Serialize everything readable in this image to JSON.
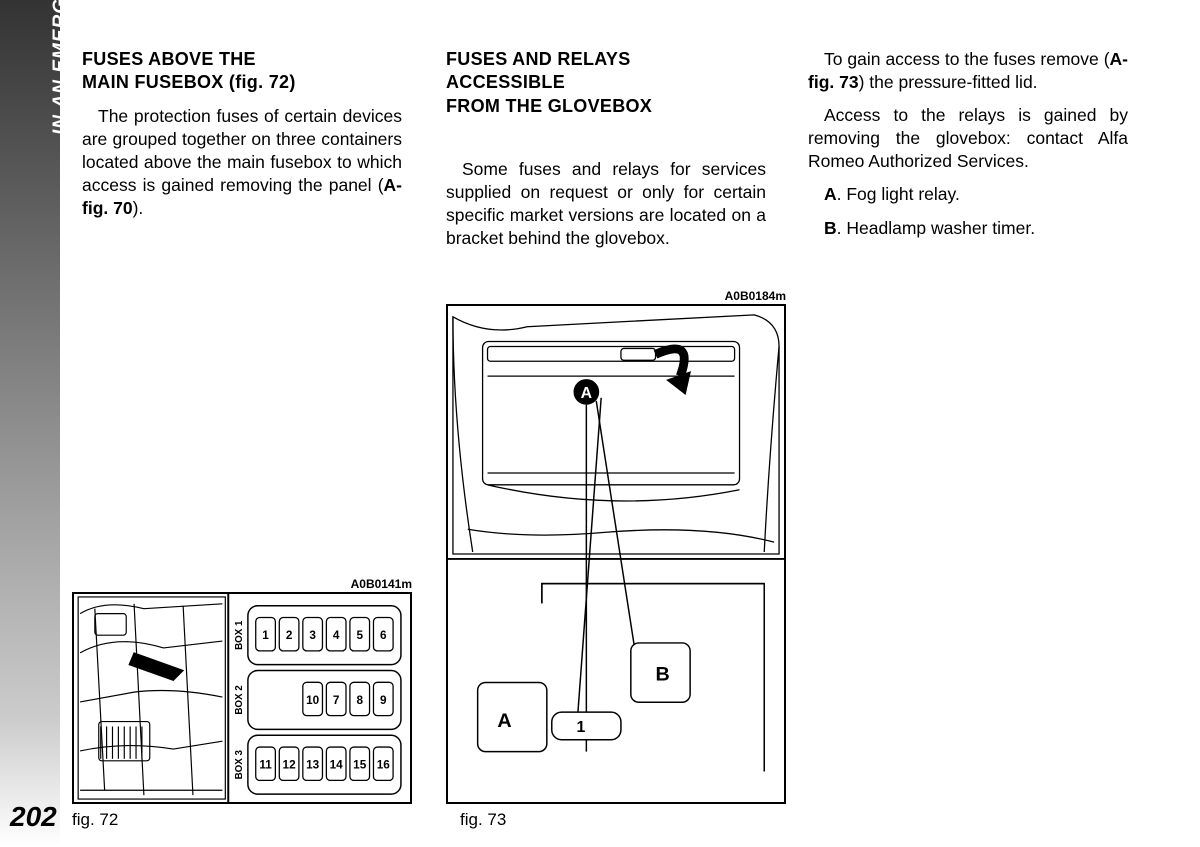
{
  "page": {
    "vertical_title": "IN AN EMERGENCY",
    "number": "202"
  },
  "col1": {
    "heading_l1": "FUSES ABOVE THE",
    "heading_l2": "MAIN FUSEBOX (fig. 72)",
    "p1a": "The protection fuses of certain devices are grouped together on three containers located above the main fusebox to which access is gained removing the panel (",
    "p1b": "A-fig. 70",
    "p1c": ")."
  },
  "col2": {
    "heading_l1": "FUSES AND RELAYS",
    "heading_l2": "ACCESSIBLE",
    "heading_l3": "FROM THE GLOVEBOX",
    "p1": "Some fuses and relays for services supplied on request or only for certain specific market versions are located on a bracket behind the glovebox."
  },
  "col3": {
    "p1a": "To gain access to the fuses remove (",
    "p1b": "A-fig. 73",
    "p1c": ") the pressure-fitted lid.",
    "p2": "Access to the relays is gained by removing the glovebox: contact Alfa Romeo Authorized Services.",
    "itemA_label": "A",
    "itemA_text": ". Fog light relay.",
    "itemB_label": "B",
    "itemB_text": ". Headlamp washer timer."
  },
  "fig72": {
    "code": "A0B0141m",
    "caption": "fig. 72",
    "box1_label": "BOX 1",
    "box2_label": "BOX 2",
    "box3_label": "BOX 3",
    "fuses_row1": [
      "1",
      "2",
      "3",
      "4",
      "5",
      "6"
    ],
    "fuses_row2": [
      "10",
      "7",
      "8",
      "9"
    ],
    "fuses_row3": [
      "11",
      "12",
      "13",
      "14",
      "15",
      "16"
    ]
  },
  "fig73": {
    "code": "A0B0184m",
    "caption": "fig. 73",
    "labelA_top": "A",
    "labelA": "A",
    "labelB": "B",
    "label1": "1"
  }
}
